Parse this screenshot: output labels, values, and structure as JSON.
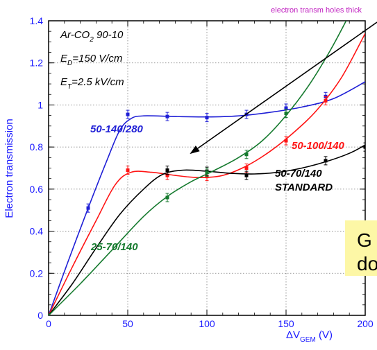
{
  "header_tag": "electron transm holes thick",
  "callout_text": "G\ndo",
  "conditions": {
    "gas": "Ar-CO",
    "gas_sub": "2",
    "gas_ratio": " 90-10",
    "ed_E": "E",
    "ed_sub": "D",
    "ed_val": "=150 V/cm",
    "et_E": "E",
    "et_sub": "T",
    "et_val": "=2.5 kV/cm"
  },
  "colors": {
    "axis_text": "#1a1aff",
    "grid": "#7a7a7a",
    "series_blue": "#1f1fd6",
    "series_red": "#ff1414",
    "series_black": "#000000",
    "series_green": "#157a2e",
    "arrow": "#000000",
    "callout_bg": "#fdf7a6"
  },
  "chart_data": {
    "type": "line",
    "ylabel": "Electron transmission",
    "xlabel_main": "ΔV",
    "xlabel_sub": "GEM",
    "xlabel_unit": " (V)",
    "xlim": [
      0,
      200
    ],
    "ylim": [
      0,
      1.4
    ],
    "xticks": [
      "0",
      "50",
      "100",
      "150",
      "200"
    ],
    "yticks": [
      "0",
      "0.2",
      "0.4",
      "0.6",
      "0.8",
      "1",
      "1.2",
      "1.4"
    ],
    "grid": true,
    "series": [
      {
        "name": "50-140/280",
        "color": "#1f1fd6",
        "points": [
          [
            0,
            0
          ],
          [
            25,
            0.51
          ],
          [
            50,
            0.955
          ],
          [
            75,
            0.945
          ],
          [
            100,
            0.94
          ],
          [
            125,
            0.955
          ],
          [
            150,
            0.985
          ],
          [
            175,
            1.04
          ]
        ],
        "curve": [
          [
            0,
            0
          ],
          [
            12,
            0.25
          ],
          [
            25,
            0.51
          ],
          [
            37,
            0.74
          ],
          [
            45,
            0.88
          ],
          [
            52,
            0.935
          ],
          [
            60,
            0.948
          ],
          [
            80,
            0.945
          ],
          [
            100,
            0.943
          ],
          [
            120,
            0.948
          ],
          [
            140,
            0.965
          ],
          [
            160,
            0.99
          ],
          [
            180,
            1.03
          ],
          [
            200,
            1.11
          ]
        ]
      },
      {
        "name": "50-100/140",
        "color": "#ff1414",
        "points": [
          [
            0,
            0
          ],
          [
            50,
            0.69
          ],
          [
            75,
            0.665
          ],
          [
            100,
            0.66
          ],
          [
            125,
            0.7
          ],
          [
            150,
            0.83
          ],
          [
            175,
            1.02
          ]
        ],
        "curve": [
          [
            0,
            0
          ],
          [
            15,
            0.23
          ],
          [
            30,
            0.45
          ],
          [
            42,
            0.62
          ],
          [
            52,
            0.68
          ],
          [
            65,
            0.68
          ],
          [
            80,
            0.665
          ],
          [
            95,
            0.655
          ],
          [
            110,
            0.665
          ],
          [
            125,
            0.71
          ],
          [
            140,
            0.78
          ],
          [
            155,
            0.87
          ],
          [
            170,
            0.98
          ],
          [
            185,
            1.13
          ],
          [
            200,
            1.34
          ]
        ]
      },
      {
        "name": "50-70/140",
        "color": "#000000",
        "points": [
          [
            0,
            0
          ],
          [
            75,
            0.69
          ],
          [
            100,
            0.685
          ],
          [
            125,
            0.665
          ],
          [
            175,
            0.735
          ],
          [
            200,
            0.8
          ]
        ],
        "curve": [
          [
            0,
            0
          ],
          [
            15,
            0.15
          ],
          [
            30,
            0.32
          ],
          [
            45,
            0.48
          ],
          [
            60,
            0.6
          ],
          [
            72,
            0.67
          ],
          [
            85,
            0.69
          ],
          [
            100,
            0.685
          ],
          [
            115,
            0.675
          ],
          [
            130,
            0.672
          ],
          [
            145,
            0.68
          ],
          [
            160,
            0.7
          ],
          [
            175,
            0.73
          ],
          [
            190,
            0.77
          ],
          [
            200,
            0.81
          ]
        ]
      },
      {
        "name": "25-70/140",
        "color": "#157a2e",
        "points": [
          [
            0,
            0
          ],
          [
            75,
            0.56
          ],
          [
            100,
            0.68
          ],
          [
            125,
            0.765
          ],
          [
            150,
            0.96
          ]
        ],
        "curve": [
          [
            0,
            0
          ],
          [
            20,
            0.15
          ],
          [
            40,
            0.31
          ],
          [
            60,
            0.47
          ],
          [
            75,
            0.565
          ],
          [
            90,
            0.635
          ],
          [
            105,
            0.69
          ],
          [
            120,
            0.75
          ],
          [
            135,
            0.83
          ],
          [
            150,
            0.95
          ],
          [
            165,
            1.1
          ],
          [
            178,
            1.26
          ],
          [
            188,
            1.4
          ]
        ]
      }
    ],
    "series_label_text": {
      "blue": "50-140/280",
      "red": "50-100/140",
      "black_1": "50-70/140",
      "black_2": "STANDARD",
      "green": "25-70/140"
    }
  }
}
